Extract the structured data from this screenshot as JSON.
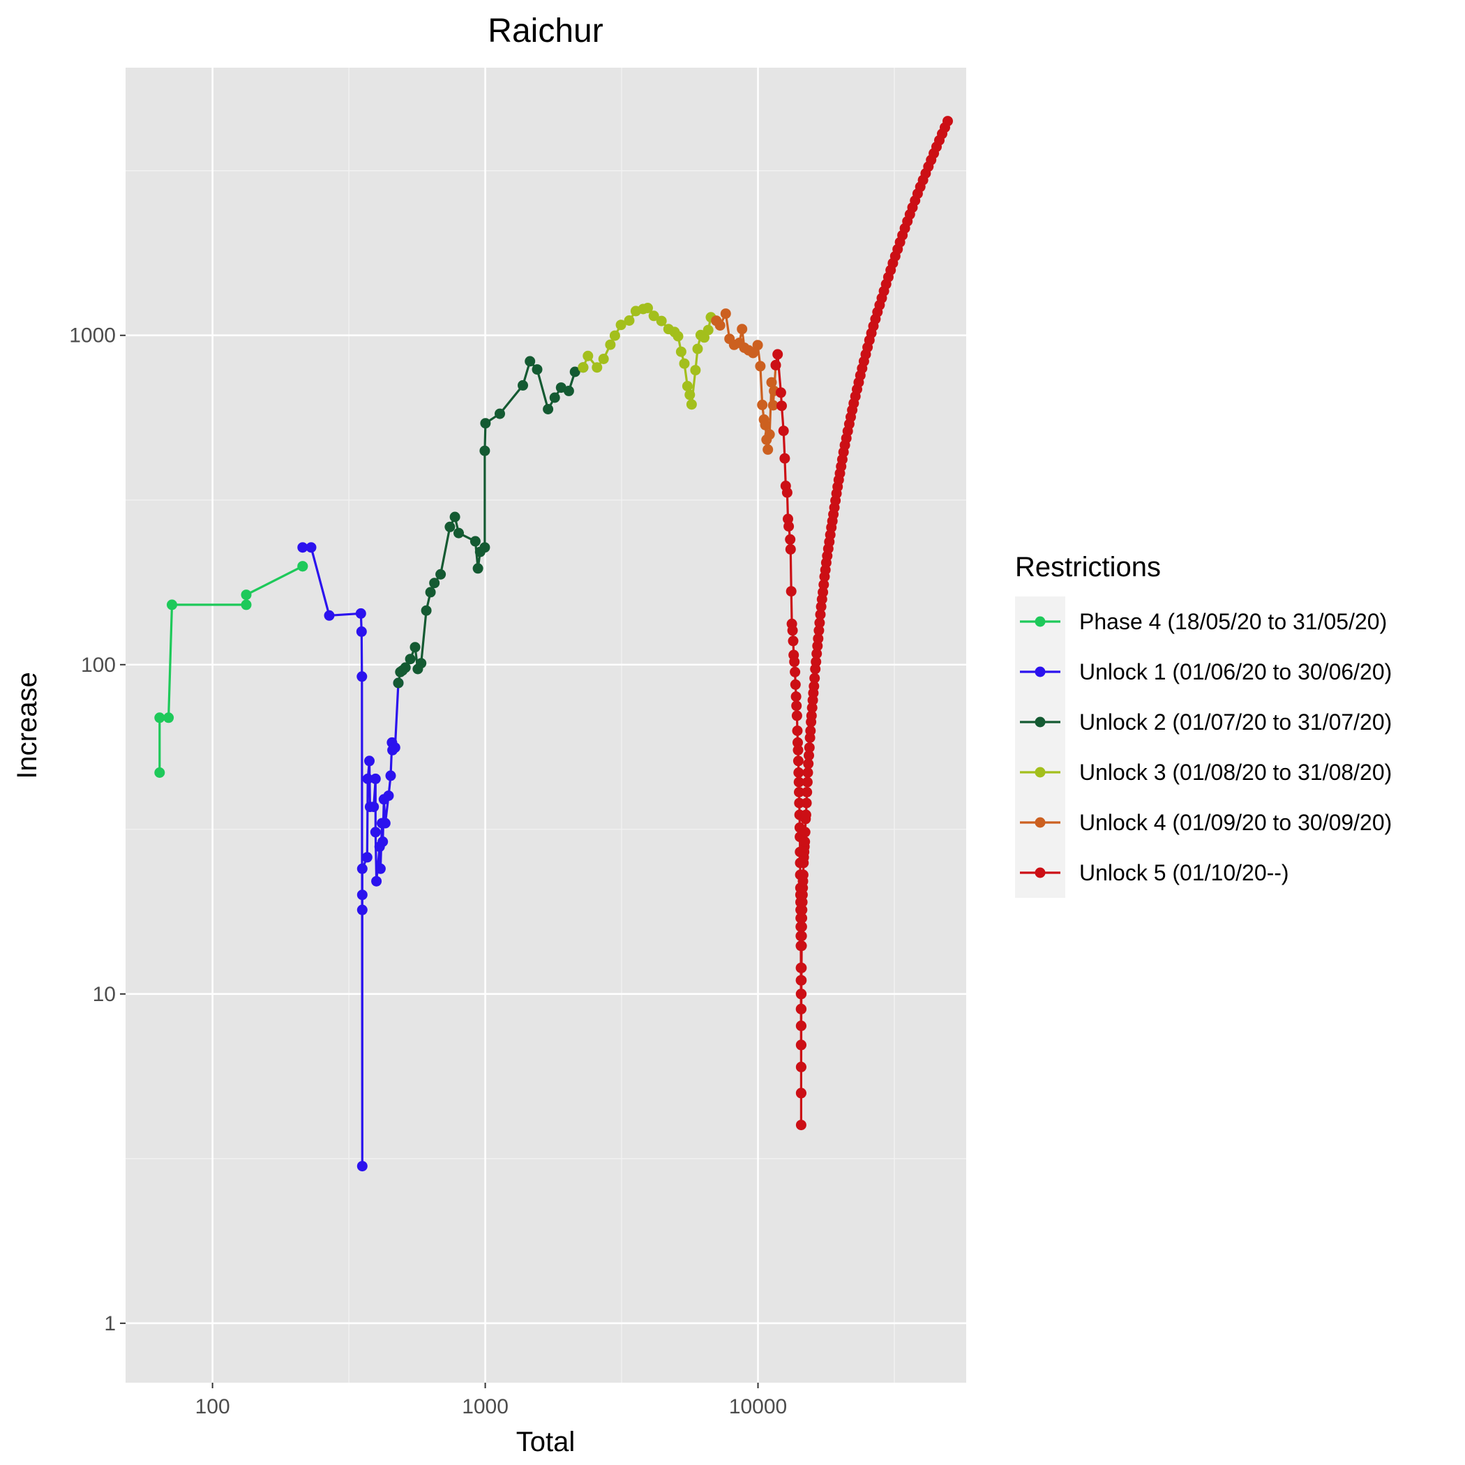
{
  "chart_data": {
    "type": "line",
    "title": "Raichur",
    "xlabel": "Total",
    "ylabel": "Increase",
    "x_scale": "log10",
    "y_scale": "log10",
    "xlim": [
      48,
      58000
    ],
    "ylim": [
      0.66,
      6500
    ],
    "x_ticks": [
      {
        "value": 100,
        "label": "100"
      },
      {
        "value": 1000,
        "label": "1000"
      },
      {
        "value": 10000,
        "label": "10000"
      }
    ],
    "y_ticks": [
      {
        "value": 1,
        "label": "1"
      },
      {
        "value": 10,
        "label": "10"
      },
      {
        "value": 100,
        "label": "100"
      },
      {
        "value": 1000,
        "label": "1000"
      }
    ],
    "grid": true,
    "legend": {
      "title": "Restrictions",
      "position": "right"
    },
    "series": [
      {
        "name": "Phase 4 (18/05/20 to 31/05/20)",
        "color": "#1ec95a",
        "points": [
          [
            64,
            47
          ],
          [
            64,
            69
          ],
          [
            69,
            69
          ],
          [
            71,
            152
          ],
          [
            133,
            152
          ],
          [
            133,
            163
          ],
          [
            214,
            199
          ],
          [
            214,
            199
          ]
        ]
      },
      {
        "name": "Unlock 1 (01/06/20 to 30/06/20)",
        "color": "#2b12ee",
        "points": [
          [
            214,
            227
          ],
          [
            230,
            227
          ],
          [
            268,
            141
          ],
          [
            350,
            143
          ],
          [
            352,
            126
          ],
          [
            353,
            92
          ],
          [
            354,
            3
          ],
          [
            354,
            18
          ],
          [
            354,
            20
          ],
          [
            354,
            24
          ],
          [
            369,
            26
          ],
          [
            371,
            45
          ],
          [
            376,
            51
          ],
          [
            378,
            37
          ],
          [
            390,
            37
          ],
          [
            396,
            45
          ],
          [
            396,
            31
          ],
          [
            399,
            22
          ],
          [
            410,
            28
          ],
          [
            413,
            24
          ],
          [
            418,
            33
          ],
          [
            421,
            29
          ],
          [
            425,
            39
          ],
          [
            430,
            33
          ],
          [
            442,
            40
          ],
          [
            450,
            46
          ],
          [
            455,
            58
          ],
          [
            457,
            55
          ],
          [
            467,
            56
          ],
          [
            480,
            88
          ]
        ]
      },
      {
        "name": "Unlock 2 (01/07/20 to 31/07/20)",
        "color": "#145a32",
        "points": [
          [
            480,
            88
          ],
          [
            488,
            95
          ],
          [
            497,
            96
          ],
          [
            510,
            98
          ],
          [
            531,
            104
          ],
          [
            553,
            113
          ],
          [
            566,
            97
          ],
          [
            582,
            101
          ],
          [
            608,
            146
          ],
          [
            630,
            166
          ],
          [
            651,
            177
          ],
          [
            686,
            188
          ],
          [
            742,
            262
          ],
          [
            774,
            281
          ],
          [
            799,
            251
          ],
          [
            920,
            237
          ],
          [
            940,
            196
          ],
          [
            958,
            220
          ],
          [
            996,
            227
          ],
          [
            996,
            446
          ],
          [
            1002,
            541
          ],
          [
            1131,
            578
          ],
          [
            1374,
            705
          ],
          [
            1459,
            834
          ],
          [
            1550,
            788
          ],
          [
            1699,
            597
          ],
          [
            1798,
            647
          ],
          [
            1897,
            694
          ],
          [
            2025,
            678
          ],
          [
            2133,
            775
          ],
          [
            2285,
            799
          ]
        ]
      },
      {
        "name": "Unlock 3 (01/08/20 to 31/08/20)",
        "color": "#a3bf1c",
        "points": [
          [
            2285,
            799
          ],
          [
            2380,
            866
          ],
          [
            2570,
            799
          ],
          [
            2716,
            848
          ],
          [
            2875,
            937
          ],
          [
            2987,
            998
          ],
          [
            3144,
            1076
          ],
          [
            3372,
            1109
          ],
          [
            3564,
            1185
          ],
          [
            3793,
            1202
          ],
          [
            3943,
            1211
          ],
          [
            4150,
            1146
          ],
          [
            4427,
            1106
          ],
          [
            4699,
            1045
          ],
          [
            4942,
            1024
          ],
          [
            5095,
            994
          ],
          [
            5229,
            892
          ],
          [
            5370,
            821
          ],
          [
            5513,
            701
          ],
          [
            5623,
            660
          ],
          [
            5710,
            617
          ],
          [
            5899,
            784
          ],
          [
            6008,
            910
          ],
          [
            6166,
            1002
          ],
          [
            6351,
            985
          ],
          [
            6570,
            1038
          ],
          [
            6720,
            1135
          ],
          [
            7028,
            1108
          ]
        ]
      },
      {
        "name": "Unlock 4 (01/09/20 to 30/09/20)",
        "color": "#cc6020",
        "points": [
          [
            7028,
            1108
          ],
          [
            7260,
            1072
          ],
          [
            7617,
            1164
          ],
          [
            7862,
            976
          ],
          [
            8174,
            936
          ],
          [
            8544,
            949
          ],
          [
            8743,
            1045
          ],
          [
            8912,
            917
          ],
          [
            9240,
            901
          ],
          [
            9596,
            884
          ],
          [
            9975,
            934
          ],
          [
            10200,
            806
          ],
          [
            10368,
            615
          ],
          [
            10520,
            555
          ],
          [
            10640,
            534
          ],
          [
            10750,
            482
          ],
          [
            10868,
            450
          ],
          [
            11031,
            500
          ],
          [
            11214,
            720
          ],
          [
            11365,
            613
          ],
          [
            11458,
            678
          ],
          [
            11619,
            812
          ]
        ]
      },
      {
        "name": "Unlock 5 (01/10/20--)",
        "color": "#cc0f15",
        "points": [
          [
            11619,
            812
          ],
          [
            11801,
            876
          ],
          [
            12136,
            670
          ],
          [
            12218,
            611
          ],
          [
            12410,
            513
          ],
          [
            12539,
            423
          ],
          [
            12641,
            349
          ],
          [
            12797,
            333
          ],
          [
            12877,
            277
          ],
          [
            12965,
            263
          ],
          [
            13121,
            240
          ],
          [
            13171,
            224
          ],
          [
            13240,
            167
          ],
          [
            13308,
            133
          ],
          [
            13393,
            127
          ],
          [
            13460,
            118
          ],
          [
            13520,
            107
          ],
          [
            13600,
            102
          ],
          [
            13665,
            95
          ],
          [
            13725,
            87
          ],
          [
            13790,
            80
          ],
          [
            13841,
            75
          ],
          [
            13896,
            70
          ],
          [
            13942,
            63
          ],
          [
            13985,
            58
          ],
          [
            14025,
            55
          ],
          [
            14063,
            51
          ],
          [
            14096,
            47
          ],
          [
            14125,
            44
          ],
          [
            14156,
            41
          ],
          [
            14180,
            38
          ],
          [
            14202,
            35
          ],
          [
            14224,
            32
          ],
          [
            14243,
            30
          ],
          [
            14260,
            27
          ],
          [
            14275,
            25
          ],
          [
            14289,
            23
          ],
          [
            14302,
            21
          ],
          [
            14312,
            20
          ],
          [
            14322,
            19
          ],
          [
            14331,
            18
          ],
          [
            14340,
            17
          ],
          [
            14348,
            16
          ],
          [
            14355,
            15
          ],
          [
            14362,
            14
          ],
          [
            14368,
            12
          ],
          [
            14373,
            11
          ],
          [
            14378,
            10
          ],
          [
            14383,
            9
          ],
          [
            14387,
            8
          ],
          [
            14390,
            7
          ],
          [
            14393,
            6
          ],
          [
            14396,
            5
          ],
          [
            14398,
            4
          ],
          [
            14398,
            5
          ],
          [
            14400,
            6
          ],
          [
            14403,
            7
          ],
          [
            14408,
            8
          ],
          [
            14414,
            9
          ],
          [
            14421,
            10
          ],
          [
            14430,
            11
          ],
          [
            14440,
            12
          ],
          [
            14452,
            14
          ],
          [
            14466,
            15
          ],
          [
            14481,
            16
          ],
          [
            14499,
            17
          ],
          [
            14518,
            18
          ],
          [
            14539,
            19
          ],
          [
            14563,
            20
          ],
          [
            14590,
            21
          ],
          [
            14618,
            22
          ],
          [
            14650,
            23
          ],
          [
            14685,
            25
          ],
          [
            14722,
            26
          ],
          [
            14762,
            27
          ],
          [
            14806,
            28
          ],
          [
            14852,
            29
          ],
          [
            14900,
            31
          ],
          [
            14952,
            34
          ],
          [
            15006,
            35
          ],
          [
            15062,
            38
          ],
          [
            15118,
            41
          ],
          [
            15176,
            44
          ],
          [
            15236,
            47
          ],
          [
            15300,
            50
          ],
          [
            15370,
            53
          ],
          [
            15442,
            56
          ],
          [
            15512,
            60
          ],
          [
            15580,
            63
          ],
          [
            15650,
            67
          ],
          [
            15720,
            70
          ],
          [
            15800,
            74
          ],
          [
            15882,
            78
          ],
          [
            15963,
            82
          ],
          [
            16046,
            86
          ],
          [
            16132,
            91
          ],
          [
            16222,
            97
          ],
          [
            16319,
            102
          ],
          [
            16420,
            108
          ],
          [
            16520,
            114
          ],
          [
            16622,
            120
          ],
          [
            16725,
            127
          ],
          [
            16830,
            134
          ],
          [
            16938,
            142
          ],
          [
            17050,
            150
          ],
          [
            17170,
            158
          ],
          [
            17296,
            166
          ],
          [
            17418,
            175
          ],
          [
            17542,
            185
          ],
          [
            17670,
            194
          ],
          [
            17800,
            204
          ],
          [
            17945,
            214
          ],
          [
            18100,
            225
          ],
          [
            18261,
            236
          ],
          [
            18420,
            248
          ],
          [
            18578,
            261
          ],
          [
            18740,
            273
          ],
          [
            18900,
            286
          ],
          [
            19062,
            300
          ],
          [
            19231,
            315
          ],
          [
            19410,
            331
          ],
          [
            19594,
            347
          ],
          [
            19780,
            364
          ],
          [
            19972,
            381
          ],
          [
            20172,
            400
          ],
          [
            20380,
            420
          ],
          [
            20600,
            442
          ],
          [
            20830,
            464
          ],
          [
            21080,
            487
          ],
          [
            21340,
            512
          ],
          [
            21610,
            538
          ],
          [
            21880,
            565
          ],
          [
            22160,
            593
          ],
          [
            22450,
            622
          ],
          [
            22760,
            653
          ],
          [
            23080,
            686
          ],
          [
            23400,
            720
          ],
          [
            23740,
            756
          ],
          [
            24090,
            794
          ],
          [
            24460,
            834
          ],
          [
            24830,
            876
          ],
          [
            25220,
            920
          ],
          [
            25630,
            967
          ],
          [
            26050,
            1016
          ],
          [
            26500,
            1067
          ],
          [
            26950,
            1121
          ],
          [
            27420,
            1177
          ],
          [
            27920,
            1236
          ],
          [
            28440,
            1298
          ],
          [
            28960,
            1363
          ],
          [
            29500,
            1431
          ],
          [
            30060,
            1503
          ],
          [
            30640,
            1578
          ],
          [
            31240,
            1657
          ],
          [
            31860,
            1740
          ],
          [
            32500,
            1827
          ],
          [
            33160,
            1918
          ],
          [
            33850,
            2014
          ],
          [
            34560,
            2115
          ],
          [
            35300,
            2220
          ],
          [
            36060,
            2330
          ],
          [
            36850,
            2446
          ],
          [
            37660,
            2567
          ],
          [
            38500,
            2693
          ],
          [
            39370,
            2825
          ],
          [
            40270,
            2962
          ],
          [
            41190,
            3105
          ],
          [
            42140,
            3254
          ],
          [
            43120,
            3409
          ],
          [
            44120,
            3570
          ],
          [
            45160,
            3738
          ],
          [
            46230,
            3912
          ],
          [
            47330,
            4093
          ],
          [
            48460,
            4280
          ],
          [
            49620,
            4473
          ]
        ]
      }
    ]
  }
}
